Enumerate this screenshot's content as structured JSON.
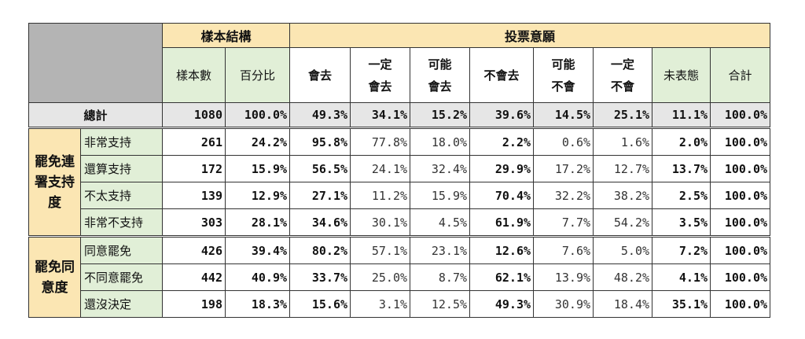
{
  "groups": {
    "structure": "樣本結構",
    "intention": "投票意願"
  },
  "columns": {
    "sample_count": "樣本數",
    "percentage": "百分比",
    "will_go": "會去",
    "definitely_go": [
      "一定",
      "會去"
    ],
    "maybe_go": [
      "可能",
      "會去"
    ],
    "will_not_go": "不會去",
    "maybe_not": [
      "可能",
      "不會"
    ],
    "definitely_not": [
      "一定",
      "不會"
    ],
    "undeclared": "未表態",
    "total": "合計"
  },
  "total_row": {
    "label": "總計",
    "values": [
      "1080",
      "100.0%",
      "49.3%",
      "34.1%",
      "15.2%",
      "39.6%",
      "14.5%",
      "25.1%",
      "11.1%",
      "100.0%"
    ]
  },
  "sections": [
    {
      "label": [
        "罷免連",
        "署支持",
        "度"
      ],
      "rows": [
        {
          "label": "非常支持",
          "values": [
            "261",
            "24.2%",
            "95.8%",
            "77.8%",
            "18.0%",
            "2.2%",
            "0.6%",
            "1.6%",
            "2.0%",
            "100.0%"
          ]
        },
        {
          "label": "還算支持",
          "values": [
            "172",
            "15.9%",
            "56.5%",
            "24.1%",
            "32.4%",
            "29.9%",
            "17.2%",
            "12.7%",
            "13.7%",
            "100.0%"
          ]
        },
        {
          "label": "不太支持",
          "values": [
            "139",
            "12.9%",
            "27.1%",
            "11.2%",
            "15.9%",
            "70.4%",
            "32.2%",
            "38.2%",
            "2.5%",
            "100.0%"
          ]
        },
        {
          "label": "非常不支持",
          "values": [
            "303",
            "28.1%",
            "34.6%",
            "30.1%",
            "4.5%",
            "61.9%",
            "7.7%",
            "54.2%",
            "3.5%",
            "100.0%"
          ]
        }
      ]
    },
    {
      "label": [
        "罷免同",
        "意度"
      ],
      "rows": [
        {
          "label": "同意罷免",
          "values": [
            "426",
            "39.4%",
            "80.2%",
            "57.1%",
            "23.1%",
            "12.6%",
            "7.6%",
            "5.0%",
            "7.2%",
            "100.0%"
          ]
        },
        {
          "label": "不同意罷免",
          "values": [
            "442",
            "40.9%",
            "33.7%",
            "25.0%",
            "8.7%",
            "62.1%",
            "13.9%",
            "48.2%",
            "4.1%",
            "100.0%"
          ]
        },
        {
          "label": "還沒決定",
          "values": [
            "198",
            "18.3%",
            "15.6%",
            "3.1%",
            "12.5%",
            "49.3%",
            "30.9%",
            "18.4%",
            "35.1%",
            "100.0%"
          ]
        }
      ]
    }
  ]
}
